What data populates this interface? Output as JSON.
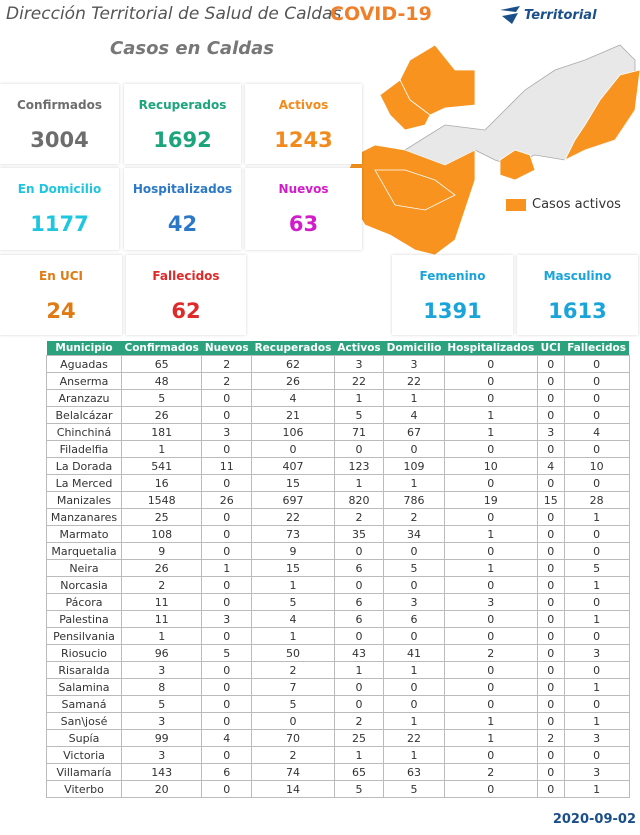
{
  "header": {
    "title": "Dirección Territorial de Salud de Caldas",
    "badge": "COVID-19",
    "logo": "Territorial"
  },
  "subtitle": "Casos en Caldas",
  "cards": [
    {
      "label": "Confirmados",
      "value": 3004,
      "color": "#6d6d6d"
    },
    {
      "label": "Recuperados",
      "value": 1692,
      "color": "#1ca57c"
    },
    {
      "label": "Activos",
      "value": 1243,
      "color": "#f28a1c"
    },
    {
      "label": "En Domicilio",
      "value": 1177,
      "color": "#1ec6e0"
    },
    {
      "label": "Hospitalizados",
      "value": 42,
      "color": "#2c78c8"
    },
    {
      "label": "Nuevos",
      "value": 63,
      "color": "#d21bc9"
    },
    {
      "label": "En UCI",
      "value": 24,
      "color": "#e07a12"
    },
    {
      "label": "Fallecidos",
      "value": 62,
      "color": "#e02a2a"
    },
    {
      "label": "Femenino",
      "value": 1391,
      "color": "#1aa4da"
    },
    {
      "label": "Masculino",
      "value": 1613,
      "color": "#1aa4da"
    }
  ],
  "map_legend": "Casos activos",
  "table": {
    "columns": [
      "Municipio",
      "Confirmados",
      "Nuevos",
      "Recuperados",
      "Activos",
      "Domicilio",
      "Hospitalizados",
      "UCI",
      "Fallecidos"
    ],
    "rows": [
      [
        "Aguadas",
        65,
        2,
        62,
        3,
        3,
        0,
        0,
        0
      ],
      [
        "Anserma",
        48,
        2,
        26,
        22,
        22,
        0,
        0,
        0
      ],
      [
        "Aranzazu",
        5,
        0,
        4,
        1,
        1,
        0,
        0,
        0
      ],
      [
        "Belalcázar",
        26,
        0,
        21,
        5,
        4,
        1,
        0,
        0
      ],
      [
        "Chinchiná",
        181,
        3,
        106,
        71,
        67,
        1,
        3,
        4
      ],
      [
        "Filadelfia",
        1,
        0,
        0,
        0,
        0,
        0,
        0,
        0
      ],
      [
        "La Dorada",
        541,
        11,
        407,
        123,
        109,
        10,
        4,
        10
      ],
      [
        "La Merced",
        16,
        0,
        15,
        1,
        1,
        0,
        0,
        0
      ],
      [
        "Manizales",
        1548,
        26,
        697,
        820,
        786,
        19,
        15,
        28
      ],
      [
        "Manzanares",
        25,
        0,
        22,
        2,
        2,
        0,
        0,
        1
      ],
      [
        "Marmato",
        108,
        0,
        73,
        35,
        34,
        1,
        0,
        0
      ],
      [
        "Marquetalia",
        9,
        0,
        9,
        0,
        0,
        0,
        0,
        0
      ],
      [
        "Neira",
        26,
        1,
        15,
        6,
        5,
        1,
        0,
        5
      ],
      [
        "Norcasia",
        2,
        0,
        1,
        0,
        0,
        0,
        0,
        1
      ],
      [
        "Pácora",
        11,
        0,
        5,
        6,
        3,
        3,
        0,
        0
      ],
      [
        "Palestina",
        11,
        3,
        4,
        6,
        6,
        0,
        0,
        1
      ],
      [
        "Pensilvania",
        1,
        0,
        1,
        0,
        0,
        0,
        0,
        0
      ],
      [
        "Riosucio",
        96,
        5,
        50,
        43,
        41,
        2,
        0,
        3
      ],
      [
        "Risaralda",
        3,
        0,
        2,
        1,
        1,
        0,
        0,
        0
      ],
      [
        "Salamina",
        8,
        0,
        7,
        0,
        0,
        0,
        0,
        1
      ],
      [
        "Samaná",
        5,
        0,
        5,
        0,
        0,
        0,
        0,
        0
      ],
      [
        "San\\josé",
        3,
        0,
        0,
        2,
        1,
        1,
        0,
        1
      ],
      [
        "Supía",
        99,
        4,
        70,
        25,
        22,
        1,
        2,
        3
      ],
      [
        "Victoria",
        3,
        0,
        2,
        1,
        1,
        0,
        0,
        0
      ],
      [
        "Villamaría",
        143,
        6,
        74,
        65,
        63,
        2,
        0,
        3
      ],
      [
        "Viterbo",
        20,
        0,
        14,
        5,
        5,
        0,
        0,
        1
      ]
    ]
  },
  "date": "2020-09-02"
}
